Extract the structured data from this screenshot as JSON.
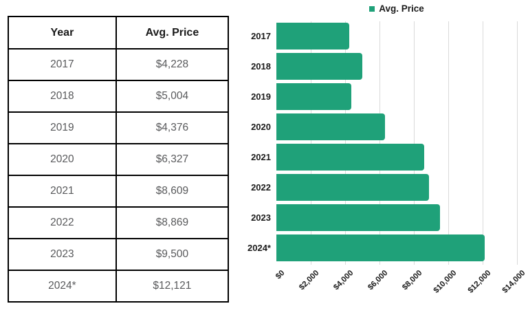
{
  "colors": {
    "bar": "#1FA179",
    "gridline": "#D9D9D9",
    "table_border": "#000000",
    "header_text": "#1A1A1A",
    "cell_text": "#58595B"
  },
  "table": {
    "headers": [
      "Year",
      "Avg. Price"
    ],
    "rows": [
      [
        "2017",
        "$4,228"
      ],
      [
        "2018",
        "$5,004"
      ],
      [
        "2019",
        "$4,376"
      ],
      [
        "2020",
        "$6,327"
      ],
      [
        "2021",
        "$8,609"
      ],
      [
        "2022",
        "$8,869"
      ],
      [
        "2023",
        "$9,500"
      ],
      [
        "2024*",
        "$12,121"
      ]
    ]
  },
  "chart_data": {
    "type": "bar",
    "orientation": "horizontal",
    "title": "",
    "legend": {
      "label": "Avg. Price",
      "position": "top-center"
    },
    "series_name": "Avg. Price",
    "categories": [
      "2017",
      "2018",
      "2019",
      "2020",
      "2021",
      "2022",
      "2023",
      "2024*"
    ],
    "values": [
      4228,
      5004,
      4376,
      6327,
      8609,
      8869,
      9500,
      12121
    ],
    "xlim": [
      0,
      14000
    ],
    "x_tick_interval": 2000,
    "x_tick_labels": [
      "$0",
      "$2,000",
      "$4,000",
      "$6,000",
      "$8,000",
      "$10,000",
      "$12,000",
      "$14,000"
    ],
    "grid": "vertical",
    "bar_color": "#1FA179"
  }
}
